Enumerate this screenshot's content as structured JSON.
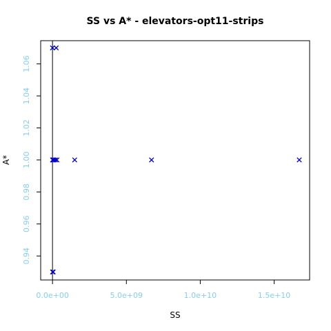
{
  "chart_data": {
    "type": "scatter",
    "title": "SS vs A* - elevators-opt11-strips",
    "xlabel": "SS",
    "ylabel": "A*",
    "xlim": [
      -800000000,
      17400000000
    ],
    "ylim": [
      0.925,
      1.0745
    ],
    "xticks": [
      {
        "value": 0,
        "label": "0.0e+00"
      },
      {
        "value": 5000000000,
        "label": "5.0e+09"
      },
      {
        "value": 10000000000,
        "label": "1.0e+10"
      },
      {
        "value": 15000000000,
        "label": "1.5e+10"
      }
    ],
    "yticks": [
      {
        "value": 0.94,
        "label": "0.94"
      },
      {
        "value": 0.96,
        "label": "0.96"
      },
      {
        "value": 0.98,
        "label": "0.98"
      },
      {
        "value": 1.0,
        "label": "1.00"
      },
      {
        "value": 1.02,
        "label": "1.02"
      },
      {
        "value": 1.04,
        "label": "1.04"
      },
      {
        "value": 1.06,
        "label": "1.06"
      }
    ],
    "reference_line": {
      "x": 0
    },
    "marker": "x",
    "colors": {
      "points": "#0000cd",
      "tick_labels": "#87ceeb",
      "axes": "#000000"
    },
    "points": [
      {
        "x": 0,
        "y": 1.07
      },
      {
        "x": 250000000,
        "y": 1.07
      },
      {
        "x": 0,
        "y": 1.0
      },
      {
        "x": 50000000,
        "y": 1.0
      },
      {
        "x": 100000000,
        "y": 1.0
      },
      {
        "x": 200000000,
        "y": 1.0
      },
      {
        "x": 300000000,
        "y": 1.0
      },
      {
        "x": 1500000000,
        "y": 1.0
      },
      {
        "x": 6700000000,
        "y": 1.0
      },
      {
        "x": 16700000000,
        "y": 1.0
      },
      {
        "x": 0,
        "y": 0.93
      },
      {
        "x": 50000000,
        "y": 0.93
      }
    ]
  }
}
